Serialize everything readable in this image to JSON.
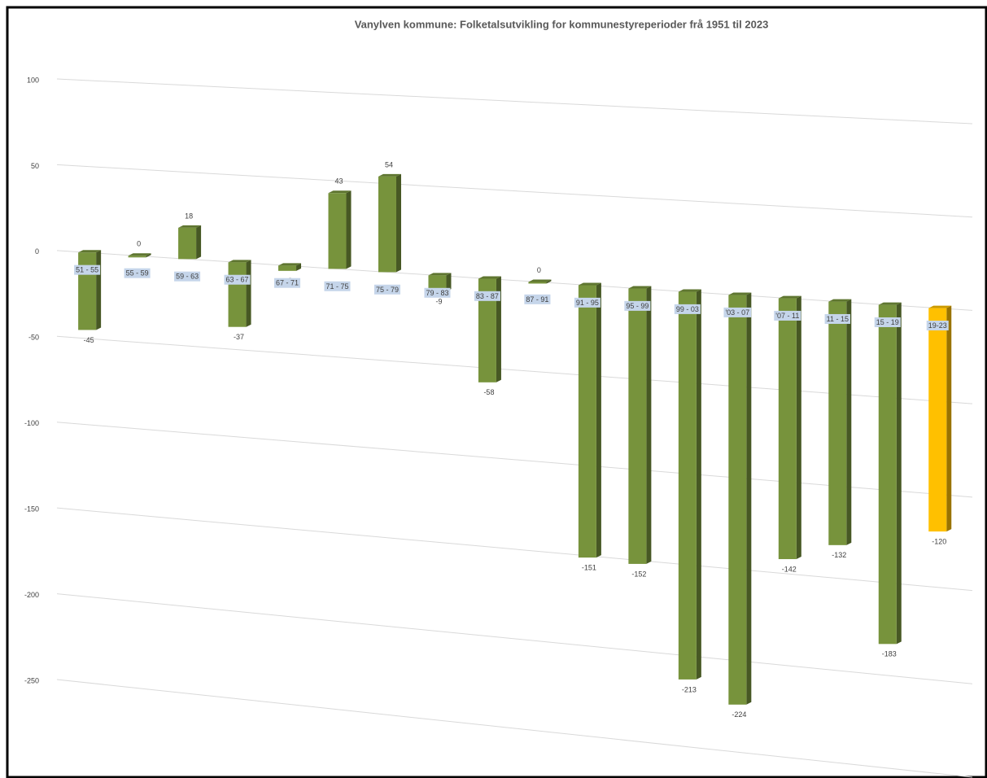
{
  "chart_data": {
    "type": "bar3d",
    "title": "Vanylven kommune: Folketalsutvikling for kommunestyreperioder frå 1951 til 2023",
    "categories": [
      "51 - 55",
      "55 - 59",
      "59 - 63",
      "63 - 67",
      "67 - 71",
      "71 - 75",
      "75 - 79",
      "79 - 83",
      "83 - 87",
      "87 - 91",
      "91 - 95",
      "95 - 99",
      "99 - 03",
      "'03 - 07",
      "'07 - 11",
      "11 - 15",
      "15 - 19",
      "19-23"
    ],
    "values": [
      -45,
      0,
      18,
      -37,
      -3,
      43,
      54,
      -9,
      -58,
      0,
      -151,
      -152,
      -213,
      -224,
      -142,
      -132,
      -183,
      -120
    ],
    "colors": [
      "#77933c",
      "#77933c",
      "#77933c",
      "#77933c",
      "#77933c",
      "#77933c",
      "#77933c",
      "#77933c",
      "#77933c",
      "#77933c",
      "#77933c",
      "#77933c",
      "#77933c",
      "#77933c",
      "#77933c",
      "#77933c",
      "#77933c",
      "#ffc000"
    ],
    "ylim": [
      -250,
      100
    ],
    "yticks": [
      100,
      50,
      0,
      -50,
      -100,
      -150,
      -200,
      -250
    ],
    "grid": true
  }
}
